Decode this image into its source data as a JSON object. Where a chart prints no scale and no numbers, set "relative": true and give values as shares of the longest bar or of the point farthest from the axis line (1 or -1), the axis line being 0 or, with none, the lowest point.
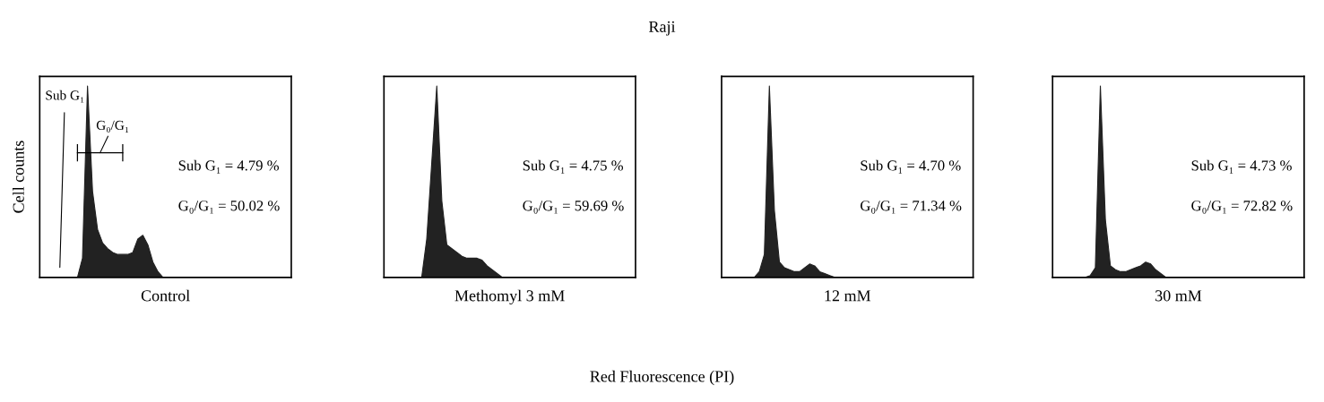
{
  "chart_data": [
    {
      "type": "area",
      "relative": true,
      "ylabel": "Cell counts",
      "xlabel": "Control",
      "tick_labels": false,
      "categories": [
        null,
        null,
        null,
        null,
        null,
        null,
        null,
        null,
        null,
        null,
        null,
        null,
        null,
        null,
        null,
        null,
        null,
        null,
        null,
        null,
        null,
        null,
        null,
        null,
        null,
        null,
        null,
        null,
        null,
        null,
        null,
        null,
        null,
        null,
        null,
        null,
        null,
        null,
        null,
        null,
        null,
        null,
        null,
        null,
        null,
        null,
        null,
        null,
        null,
        null
      ],
      "series": [
        {
          "color": "#222222",
          "values": [
            0,
            0,
            0,
            0,
            0,
            0,
            0,
            0,
            0.1,
            1.0,
            0.45,
            0.25,
            0.18,
            0.15,
            0.13,
            0.12,
            0.12,
            0.12,
            0.13,
            0.2,
            0.22,
            0.17,
            0.08,
            0.03,
            0,
            0,
            0,
            0,
            0,
            0,
            0,
            0,
            0,
            0,
            0,
            0,
            0,
            0,
            0,
            0,
            0,
            0,
            0,
            0,
            0,
            0,
            0,
            0,
            0,
            0
          ]
        }
      ],
      "annotations": [
        "Sub G₁ = 4.79 %",
        "G₀/G₁ = 50.02 %",
        "Sub G₁",
        "G₀/G₁",
        "Red Fluorescence (PI)",
        "Raji"
      ]
    },
    {
      "type": "area",
      "relative": true,
      "xlabel": "Methomyl 3 mM",
      "tick_labels": false,
      "categories": [
        null,
        null,
        null,
        null,
        null,
        null,
        null,
        null,
        null,
        null,
        null,
        null,
        null,
        null,
        null,
        null,
        null,
        null,
        null,
        null,
        null,
        null,
        null,
        null,
        null,
        null,
        null,
        null,
        null,
        null,
        null,
        null,
        null,
        null,
        null,
        null,
        null,
        null,
        null,
        null,
        null,
        null,
        null,
        null,
        null,
        null,
        null,
        null,
        null,
        null
      ],
      "series": [
        {
          "color": "#222222",
          "values": [
            0,
            0,
            0,
            0,
            0,
            0,
            0,
            0,
            0.2,
            0.6,
            1.0,
            0.4,
            0.17,
            0.15,
            0.13,
            0.11,
            0.1,
            0.1,
            0.1,
            0.09,
            0.06,
            0.04,
            0.02,
            0,
            0,
            0,
            0,
            0,
            0,
            0,
            0,
            0,
            0,
            0,
            0,
            0,
            0,
            0,
            0,
            0,
            0,
            0,
            0,
            0,
            0,
            0,
            0,
            0,
            0,
            0
          ]
        }
      ],
      "annotations": [
        "Sub G₁ = 4.75 %",
        "G₀/G₁ = 59.69 %"
      ]
    },
    {
      "type": "area",
      "relative": true,
      "xlabel": "12 mM",
      "tick_labels": false,
      "categories": [
        null,
        null,
        null,
        null,
        null,
        null,
        null,
        null,
        null,
        null,
        null,
        null,
        null,
        null,
        null,
        null,
        null,
        null,
        null,
        null,
        null,
        null,
        null,
        null,
        null,
        null,
        null,
        null,
        null,
        null,
        null,
        null,
        null,
        null,
        null,
        null,
        null,
        null,
        null,
        null,
        null,
        null,
        null,
        null,
        null,
        null,
        null,
        null,
        null,
        null
      ],
      "series": [
        {
          "color": "#222222",
          "values": [
            0,
            0,
            0,
            0,
            0,
            0,
            0,
            0.03,
            0.12,
            1.0,
            0.35,
            0.08,
            0.05,
            0.04,
            0.03,
            0.03,
            0.05,
            0.07,
            0.06,
            0.03,
            0.02,
            0.01,
            0,
            0,
            0,
            0,
            0,
            0,
            0,
            0,
            0,
            0,
            0,
            0,
            0,
            0,
            0,
            0,
            0,
            0,
            0,
            0,
            0,
            0,
            0,
            0,
            0,
            0,
            0,
            0
          ]
        }
      ],
      "annotations": [
        "Sub G₁ = 4.70 %",
        "G₀/G₁ = 71.34 %"
      ]
    },
    {
      "type": "area",
      "relative": true,
      "xlabel": "30 mM",
      "tick_labels": false,
      "categories": [
        null,
        null,
        null,
        null,
        null,
        null,
        null,
        null,
        null,
        null,
        null,
        null,
        null,
        null,
        null,
        null,
        null,
        null,
        null,
        null,
        null,
        null,
        null,
        null,
        null,
        null,
        null,
        null,
        null,
        null,
        null,
        null,
        null,
        null,
        null,
        null,
        null,
        null,
        null,
        null,
        null,
        null,
        null,
        null,
        null,
        null,
        null,
        null,
        null,
        null
      ],
      "series": [
        {
          "color": "#222222",
          "values": [
            0,
            0,
            0,
            0,
            0,
            0,
            0,
            0.01,
            0.05,
            1.0,
            0.3,
            0.06,
            0.04,
            0.03,
            0.03,
            0.04,
            0.05,
            0.06,
            0.08,
            0.07,
            0.04,
            0.02,
            0,
            0,
            0,
            0,
            0,
            0,
            0,
            0,
            0,
            0,
            0,
            0,
            0,
            0,
            0,
            0,
            0,
            0,
            0,
            0,
            0,
            0,
            0,
            0,
            0,
            0,
            0,
            0
          ]
        }
      ],
      "annotations": [
        "Sub G₁ = 4.73 %",
        "G₀/G₁ = 72.82 %"
      ]
    }
  ]
}
